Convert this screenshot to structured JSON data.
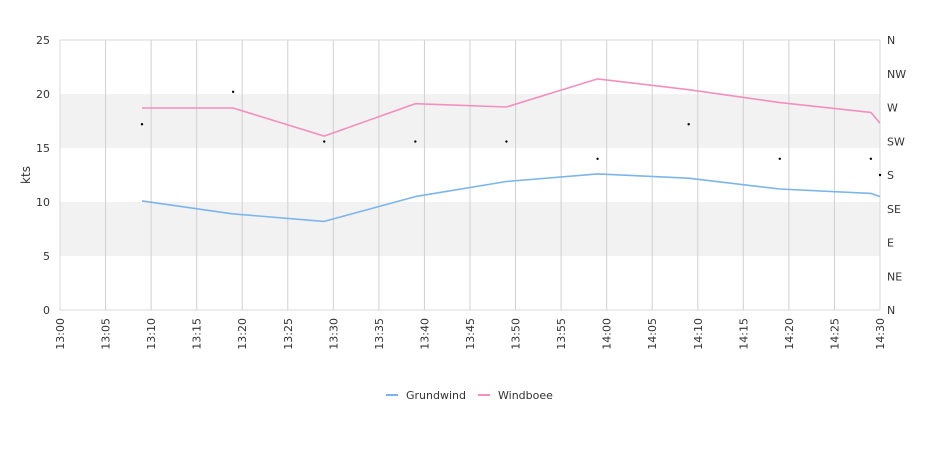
{
  "chart_data": {
    "type": "line",
    "ylabel": "kts",
    "ylim": [
      0,
      25
    ],
    "y_ticks": [
      0,
      5,
      10,
      15,
      20,
      25
    ],
    "x_ticks": [
      "13:00",
      "13:05",
      "13:10",
      "13:15",
      "13:20",
      "13:25",
      "13:30",
      "13:35",
      "13:40",
      "13:45",
      "13:50",
      "13:55",
      "14:00",
      "14:05",
      "14:10",
      "14:15",
      "14:20",
      "14:25",
      "14:30"
    ],
    "x_range": [
      "13:00",
      "14:30"
    ],
    "direction_axis": [
      "N",
      "NW",
      "W",
      "SW",
      "S",
      "SE",
      "E",
      "NE",
      "N"
    ],
    "grid": "vertical lines at every x tick; alternating shaded bands 5-10 and 15-20 kts",
    "series": [
      {
        "name": "Grundwind",
        "color": "#7cb5ec",
        "x": [
          "13:09",
          "13:19",
          "13:29",
          "13:39",
          "13:49",
          "13:59",
          "14:09",
          "14:19",
          "14:29",
          "14:30"
        ],
        "values": [
          10.1,
          8.9,
          8.2,
          10.5,
          11.9,
          12.6,
          12.2,
          11.2,
          10.8,
          10.5
        ]
      },
      {
        "name": "Windboee",
        "color": "#f28fbf",
        "x": [
          "13:09",
          "13:19",
          "13:29",
          "13:39",
          "13:49",
          "13:59",
          "14:09",
          "14:19",
          "14:29",
          "14:30"
        ],
        "values": [
          18.7,
          18.7,
          16.1,
          19.1,
          18.8,
          21.4,
          20.4,
          19.2,
          18.3,
          17.3
        ]
      }
    ],
    "direction_markers": {
      "x": [
        "13:09",
        "13:19",
        "13:29",
        "13:39",
        "13:49",
        "13:59",
        "14:09",
        "14:19",
        "14:29",
        "14:30"
      ],
      "values": [
        17.2,
        20.2,
        15.6,
        15.6,
        15.6,
        14.0,
        17.2,
        14.0,
        14.0,
        12.5
      ]
    }
  }
}
